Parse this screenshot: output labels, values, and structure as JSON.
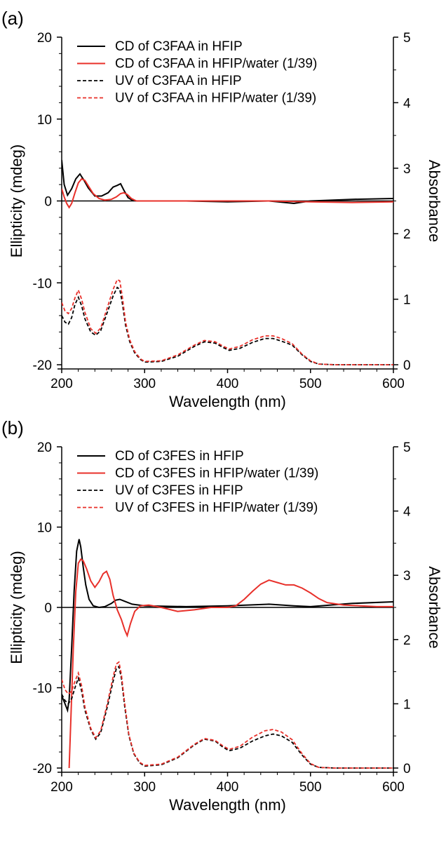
{
  "colors": {
    "cd_hfip": "#000000",
    "cd_water": "#e8302a",
    "uv_hfip": "#000000",
    "uv_water": "#e8302a",
    "zero_line": "#000000"
  },
  "chart_data": [
    {
      "type": "line",
      "panel_label": "(a)",
      "xlabel": "Wavelength (nm)",
      "ylabel": "Ellipticity (mdeg)",
      "y2label": "Absorbance",
      "xlim": [
        200,
        600
      ],
      "ylim": [
        -20,
        20
      ],
      "y2lim": [
        0,
        5
      ],
      "xticks": [
        200,
        300,
        400,
        500,
        600
      ],
      "yticks": [
        -20,
        -10,
        0,
        10,
        20
      ],
      "y2ticks": [
        0,
        1,
        2,
        3,
        4,
        5
      ],
      "zero_line": true,
      "legend_position": "top-left",
      "series": [
        {
          "name": "CD of C3FAA in HFIP",
          "axis": "left",
          "style": "solid",
          "color": "#000000",
          "x": [
            200,
            203,
            207,
            212,
            217,
            222,
            227,
            232,
            240,
            248,
            256,
            262,
            267,
            271,
            275,
            280,
            285,
            290,
            300,
            350,
            400,
            450,
            480,
            500,
            550,
            600
          ],
          "y": [
            5.0,
            2.0,
            0.7,
            1.5,
            2.7,
            3.3,
            2.5,
            1.6,
            0.6,
            0.6,
            1.0,
            1.7,
            1.9,
            2.1,
            1.3,
            0.4,
            0.1,
            0.0,
            0.0,
            0.0,
            -0.1,
            0.0,
            -0.3,
            0.0,
            0.2,
            0.3
          ]
        },
        {
          "name": "CD of C3FAA in HFIP/water (1/39)",
          "axis": "left",
          "style": "solid",
          "color": "#e8302a",
          "x": [
            200,
            203,
            206,
            209,
            212,
            216,
            220,
            224,
            228,
            233,
            238,
            245,
            252,
            260,
            266,
            271,
            275,
            279,
            284,
            290,
            300,
            350,
            400,
            450,
            500,
            550,
            600
          ],
          "y": [
            1.5,
            0.5,
            -0.3,
            -0.8,
            -0.3,
            1.0,
            2.2,
            2.7,
            2.5,
            1.7,
            0.9,
            0.3,
            0.1,
            0.2,
            0.5,
            0.9,
            1.0,
            0.8,
            0.3,
            0.0,
            0.0,
            0.0,
            0.0,
            0.0,
            -0.1,
            -0.2,
            -0.1
          ]
        },
        {
          "name": "UV of C3FAA in HFIP",
          "axis": "right",
          "style": "dashed",
          "color": "#000000",
          "x": [
            200,
            204,
            208,
            212,
            216,
            220,
            224,
            228,
            235,
            241,
            247,
            255,
            262,
            267,
            270,
            273,
            277,
            282,
            288,
            295,
            300,
            320,
            340,
            360,
            372,
            385,
            395,
            402,
            415,
            430,
            445,
            455,
            465,
            478,
            490,
            500,
            510,
            530,
            560,
            600
          ],
          "y": [
            0.75,
            0.65,
            0.62,
            0.72,
            0.92,
            1.03,
            0.9,
            0.7,
            0.5,
            0.45,
            0.52,
            0.8,
            1.05,
            1.18,
            1.15,
            0.95,
            0.6,
            0.35,
            0.18,
            0.08,
            0.04,
            0.05,
            0.13,
            0.28,
            0.35,
            0.33,
            0.26,
            0.22,
            0.25,
            0.34,
            0.4,
            0.4,
            0.36,
            0.3,
            0.15,
            0.05,
            0.01,
            0.0,
            0.0,
            0.0
          ]
        },
        {
          "name": "UV of C3FAA in HFIP/water (1/39)",
          "axis": "right",
          "style": "dashed",
          "color": "#e8302a",
          "x": [
            200,
            204,
            208,
            212,
            216,
            220,
            224,
            228,
            235,
            241,
            247,
            255,
            262,
            267,
            270,
            273,
            277,
            282,
            288,
            295,
            300,
            320,
            340,
            360,
            372,
            385,
            395,
            402,
            415,
            430,
            445,
            455,
            465,
            478,
            490,
            500,
            510,
            530,
            560,
            600
          ],
          "y": [
            0.95,
            0.82,
            0.78,
            0.86,
            1.02,
            1.14,
            1.0,
            0.8,
            0.55,
            0.48,
            0.56,
            0.87,
            1.15,
            1.3,
            1.28,
            1.05,
            0.65,
            0.38,
            0.2,
            0.09,
            0.05,
            0.06,
            0.15,
            0.3,
            0.37,
            0.35,
            0.28,
            0.24,
            0.28,
            0.38,
            0.44,
            0.44,
            0.4,
            0.32,
            0.16,
            0.06,
            0.01,
            0.0,
            0.0,
            0.0
          ]
        }
      ]
    },
    {
      "type": "line",
      "panel_label": "(b)",
      "xlabel": "Wavelength (nm)",
      "ylabel": "Ellipticity (mdeg)",
      "y2label": "Absorbance",
      "xlim": [
        200,
        600
      ],
      "ylim": [
        -20,
        20
      ],
      "y2lim": [
        0,
        5
      ],
      "xticks": [
        200,
        300,
        400,
        500,
        600
      ],
      "yticks": [
        -20,
        -10,
        0,
        10,
        20
      ],
      "y2ticks": [
        0,
        1,
        2,
        3,
        4,
        5
      ],
      "zero_line": true,
      "legend_position": "top-left",
      "series": [
        {
          "name": "CD of C3FES in HFIP",
          "axis": "left",
          "style": "solid",
          "color": "#000000",
          "x": [
            200,
            204,
            207,
            209,
            212,
            215,
            218,
            221,
            223,
            226,
            229,
            233,
            238,
            245,
            252,
            260,
            265,
            270,
            275,
            285,
            300,
            350,
            400,
            450,
            480,
            500,
            550,
            600
          ],
          "y": [
            -11,
            -12,
            -12.8,
            -11.5,
            -5,
            2,
            7,
            8.5,
            7.5,
            5,
            2.8,
            1.0,
            0.2,
            0.0,
            0.1,
            0.5,
            0.9,
            1.0,
            0.8,
            0.4,
            0.2,
            0.1,
            0.2,
            0.4,
            0.2,
            0.1,
            0.5,
            0.7
          ]
        },
        {
          "name": "CD of C3FES in HFIP/water (1/39)",
          "axis": "left",
          "style": "solid",
          "color": "#e8302a",
          "x": [
            209,
            211,
            214,
            217,
            220,
            223,
            226,
            230,
            235,
            240,
            245,
            250,
            254,
            258,
            262,
            267,
            272,
            276,
            279,
            283,
            288,
            295,
            305,
            320,
            340,
            360,
            380,
            400,
            410,
            420,
            430,
            440,
            450,
            460,
            470,
            480,
            490,
            500,
            510,
            520,
            540,
            560,
            580,
            600
          ],
          "y": [
            -20,
            -14,
            -5,
            2,
            5.5,
            6.0,
            5.8,
            4.8,
            3.3,
            2.5,
            3.2,
            4.2,
            4.5,
            3.5,
            1.5,
            -0.3,
            -1.5,
            -2.8,
            -3.5,
            -2.0,
            -0.5,
            0.2,
            0.3,
            0.0,
            -0.5,
            -0.3,
            0.0,
            0.0,
            0.2,
            1.0,
            2.0,
            2.9,
            3.4,
            3.1,
            2.8,
            2.8,
            2.4,
            1.8,
            1.1,
            0.6,
            0.3,
            0.2,
            0.1,
            0.1
          ]
        },
        {
          "name": "UV of C3FES in HFIP",
          "axis": "right",
          "style": "dashed",
          "color": "#000000",
          "x": [
            200,
            204,
            208,
            212,
            216,
            220,
            224,
            228,
            235,
            241,
            247,
            255,
            262,
            266,
            269,
            272,
            276,
            281,
            287,
            294,
            300,
            320,
            340,
            360,
            372,
            385,
            395,
            402,
            415,
            430,
            445,
            455,
            465,
            478,
            490,
            500,
            510,
            530,
            560,
            600
          ],
          "y": [
            1.15,
            1.05,
            1.0,
            1.08,
            1.25,
            1.4,
            1.2,
            0.9,
            0.6,
            0.45,
            0.55,
            0.95,
            1.35,
            1.55,
            1.58,
            1.4,
            0.95,
            0.5,
            0.22,
            0.08,
            0.03,
            0.05,
            0.16,
            0.36,
            0.45,
            0.42,
            0.32,
            0.27,
            0.31,
            0.42,
            0.5,
            0.53,
            0.5,
            0.4,
            0.2,
            0.06,
            0.01,
            0.0,
            0.0,
            0.0
          ]
        },
        {
          "name": "UV of C3FES in HFIP/water (1/39)",
          "axis": "right",
          "style": "dashed",
          "color": "#e8302a",
          "x": [
            200,
            204,
            208,
            212,
            216,
            220,
            224,
            228,
            235,
            241,
            247,
            255,
            262,
            266,
            269,
            272,
            276,
            281,
            287,
            294,
            300,
            320,
            340,
            360,
            372,
            385,
            395,
            402,
            415,
            430,
            445,
            455,
            465,
            478,
            490,
            500,
            510,
            530,
            560,
            600
          ],
          "y": [
            1.38,
            1.22,
            1.15,
            1.2,
            1.35,
            1.48,
            1.28,
            0.95,
            0.62,
            0.47,
            0.58,
            1.0,
            1.42,
            1.62,
            1.65,
            1.46,
            1.0,
            0.52,
            0.23,
            0.09,
            0.04,
            0.06,
            0.17,
            0.37,
            0.46,
            0.43,
            0.34,
            0.29,
            0.34,
            0.48,
            0.58,
            0.6,
            0.56,
            0.44,
            0.22,
            0.07,
            0.01,
            0.0,
            0.0,
            0.0
          ]
        }
      ]
    }
  ]
}
